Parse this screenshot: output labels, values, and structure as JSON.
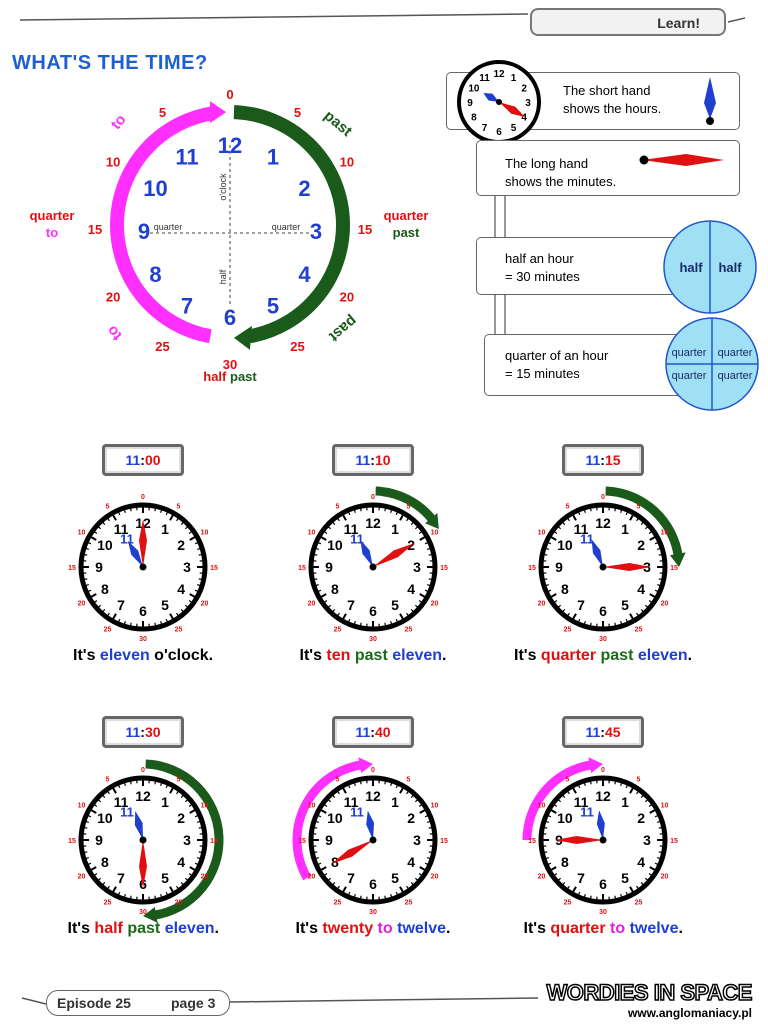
{
  "header": {
    "learn_label": "Learn!"
  },
  "title": "WHAT'S THE TIME?",
  "big_clock": {
    "hours": [
      "12",
      "1",
      "2",
      "3",
      "4",
      "5",
      "6",
      "7",
      "8",
      "9",
      "10",
      "11"
    ],
    "minute_marks": [
      "0",
      "5",
      "10",
      "15",
      "20",
      "25",
      "30",
      "25",
      "20",
      "15",
      "10",
      "5"
    ],
    "past_word": "past",
    "to_word": "to",
    "oclock_label": "o'clock",
    "half_label": "half",
    "quarter_label": "quarter",
    "quarter_to_line1": "quarter",
    "quarter_to_line2": "to",
    "quarter_past_line1": "quarter",
    "quarter_past_line2": "past",
    "half_past_word1": "half",
    "half_past_word2": "past",
    "colors": {
      "past": "#1a5a1a",
      "to": "#ff30ff",
      "numbers": "#1f3fd0",
      "minutes": "#e01010"
    }
  },
  "info": {
    "short_hand": {
      "line1": "The short hand",
      "line2": "shows the hours."
    },
    "long_hand": {
      "line1": "The long hand",
      "line2": "shows the minutes."
    },
    "half_hour": {
      "line1": "half an hour",
      "line2": "= 30 minutes",
      "segment": "half"
    },
    "quarter_hour": {
      "line1": "quarter of an hour",
      "line2": "= 15 minutes",
      "segment": "quarter"
    },
    "mini_clock_numbers": [
      "12",
      "1",
      "2",
      "3",
      "4",
      "5",
      "6",
      "7",
      "8",
      "9",
      "10",
      "11"
    ]
  },
  "clocks": [
    {
      "hour_text": "11",
      "minute_text": "00",
      "hour": 11,
      "minute": 0,
      "sentence": [
        {
          "t": "It's ",
          "c": "black"
        },
        {
          "t": "eleven",
          "c": "blue"
        },
        {
          "t": " o'clock.",
          "c": "black"
        }
      ]
    },
    {
      "hour_text": "11",
      "minute_text": "10",
      "hour": 11,
      "minute": 10,
      "sentence": [
        {
          "t": "It's ",
          "c": "black"
        },
        {
          "t": "ten",
          "c": "red"
        },
        {
          "t": " ",
          "c": "black"
        },
        {
          "t": "past",
          "c": "green"
        },
        {
          "t": " ",
          "c": "black"
        },
        {
          "t": "eleven",
          "c": "blue"
        },
        {
          "t": ".",
          "c": "black"
        }
      ]
    },
    {
      "hour_text": "11",
      "minute_text": "15",
      "hour": 11,
      "minute": 15,
      "sentence": [
        {
          "t": "It's ",
          "c": "black"
        },
        {
          "t": "quarter",
          "c": "red"
        },
        {
          "t": " ",
          "c": "black"
        },
        {
          "t": "past",
          "c": "green"
        },
        {
          "t": " ",
          "c": "black"
        },
        {
          "t": "eleven",
          "c": "blue"
        },
        {
          "t": ".",
          "c": "black"
        }
      ]
    },
    {
      "hour_text": "11",
      "minute_text": "30",
      "hour": 11,
      "minute": 30,
      "sentence": [
        {
          "t": "It's ",
          "c": "black"
        },
        {
          "t": "half",
          "c": "red"
        },
        {
          "t": " ",
          "c": "black"
        },
        {
          "t": "past",
          "c": "green"
        },
        {
          "t": " ",
          "c": "black"
        },
        {
          "t": "eleven",
          "c": "blue"
        },
        {
          "t": ".",
          "c": "black"
        }
      ]
    },
    {
      "hour_text": "11",
      "minute_text": "40",
      "hour": 11,
      "minute": 40,
      "sentence": [
        {
          "t": "It's ",
          "c": "black"
        },
        {
          "t": "twenty",
          "c": "red"
        },
        {
          "t": " ",
          "c": "black"
        },
        {
          "t": "to",
          "c": "pink"
        },
        {
          "t": " ",
          "c": "black"
        },
        {
          "t": "twelve",
          "c": "blue"
        },
        {
          "t": ".",
          "c": "black"
        }
      ]
    },
    {
      "hour_text": "11",
      "minute_text": "45",
      "hour": 11,
      "minute": 45,
      "sentence": [
        {
          "t": "It's ",
          "c": "black"
        },
        {
          "t": "quarter",
          "c": "red"
        },
        {
          "t": " ",
          "c": "black"
        },
        {
          "t": "to",
          "c": "pink"
        },
        {
          "t": " ",
          "c": "black"
        },
        {
          "t": "twelve",
          "c": "blue"
        },
        {
          "t": ".",
          "c": "black"
        }
      ]
    }
  ],
  "footer": {
    "episode": "Episode 25",
    "page": "page 3",
    "brand": "WORDIES IN SPACE",
    "url": "www.anglomaniacy.pl"
  }
}
